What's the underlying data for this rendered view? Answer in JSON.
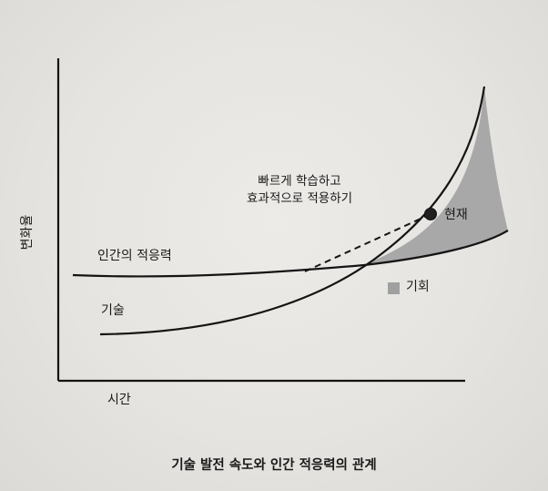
{
  "diagram": {
    "y_axis_label": "변화율",
    "x_axis_label": "시간",
    "human_curve_label": "인간의 적응력",
    "tech_curve_label": "기술",
    "annotation_line1": "빠르게 학습하고",
    "annotation_line2": "효과적으로 적용하기",
    "now_label": "현재",
    "opportunity_label": "기회",
    "caption": "기술 발전 속도와 인간 적응력의 관계",
    "colors": {
      "line": "#141414",
      "opportunity_fill": "#a8a8a8",
      "background": "#e6e4e0"
    }
  }
}
